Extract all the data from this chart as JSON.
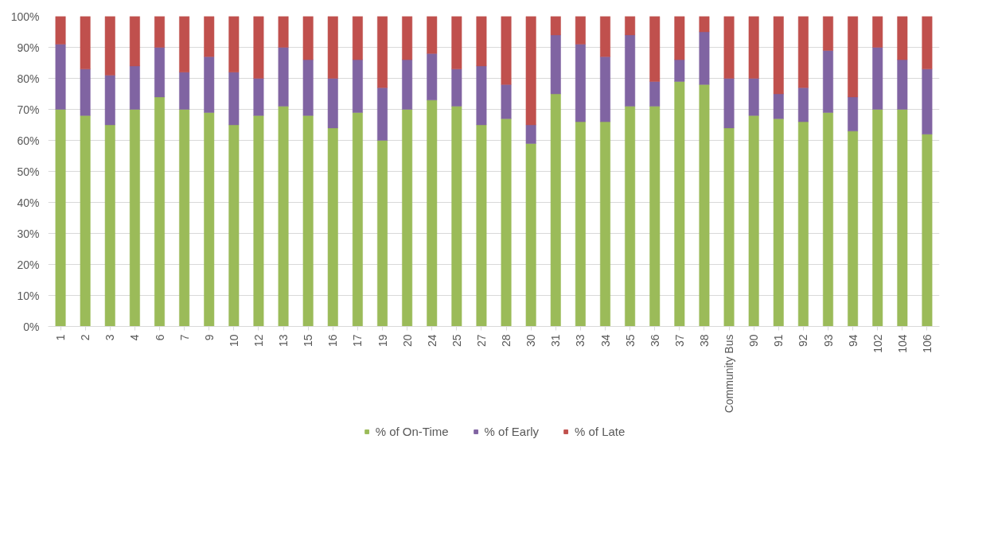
{
  "chart_data": {
    "type": "bar",
    "stacked": true,
    "categories": [
      "1",
      "2",
      "3",
      "4",
      "6",
      "7",
      "9",
      "10",
      "12",
      "13",
      "15",
      "16",
      "17",
      "19",
      "20",
      "24",
      "25",
      "27",
      "28",
      "30",
      "31",
      "33",
      "34",
      "35",
      "36",
      "37",
      "38",
      "Community Bus",
      "90",
      "91",
      "92",
      "93",
      "94",
      "102",
      "104",
      "106"
    ],
    "series": [
      {
        "name": "% of On-Time",
        "color": "#9bbb59",
        "values": [
          70,
          68,
          65,
          70,
          74,
          70,
          69,
          65,
          68,
          71,
          68,
          64,
          69,
          60,
          70,
          73,
          71,
          65,
          67,
          59,
          75,
          66,
          66,
          71,
          71,
          79,
          78,
          64,
          68,
          67,
          66,
          69,
          63,
          70,
          70,
          62
        ]
      },
      {
        "name": "% of Early",
        "color": "#8064a2",
        "values": [
          21,
          15,
          16,
          14,
          16,
          12,
          18,
          17,
          12,
          19,
          18,
          16,
          17,
          17,
          16,
          15,
          12,
          19,
          11,
          6,
          19,
          25,
          21,
          23,
          8,
          7,
          17,
          16,
          12,
          8,
          11,
          20,
          11,
          20,
          16,
          21
        ]
      },
      {
        "name": "% of Late",
        "color": "#c0504d",
        "values": [
          9,
          17,
          19,
          16,
          10,
          18,
          13,
          18,
          20,
          10,
          14,
          20,
          14,
          23,
          14,
          12,
          17,
          16,
          22,
          35,
          6,
          9,
          13,
          6,
          21,
          14,
          5,
          20,
          20,
          25,
          23,
          11,
          26,
          10,
          14,
          17
        ]
      }
    ],
    "ylim": [
      0,
      100
    ],
    "yticks": [
      {
        "value": 0,
        "label": "0%"
      },
      {
        "value": 10,
        "label": "10%"
      },
      {
        "value": 20,
        "label": "20%"
      },
      {
        "value": 30,
        "label": "30%"
      },
      {
        "value": 40,
        "label": "40%"
      },
      {
        "value": 50,
        "label": "50%"
      },
      {
        "value": 60,
        "label": "60%"
      },
      {
        "value": 70,
        "label": "70%"
      },
      {
        "value": 80,
        "label": "80%"
      },
      {
        "value": 90,
        "label": "90%"
      },
      {
        "value": 100,
        "label": "100%"
      }
    ],
    "grid": "y",
    "legend": "bottom"
  }
}
